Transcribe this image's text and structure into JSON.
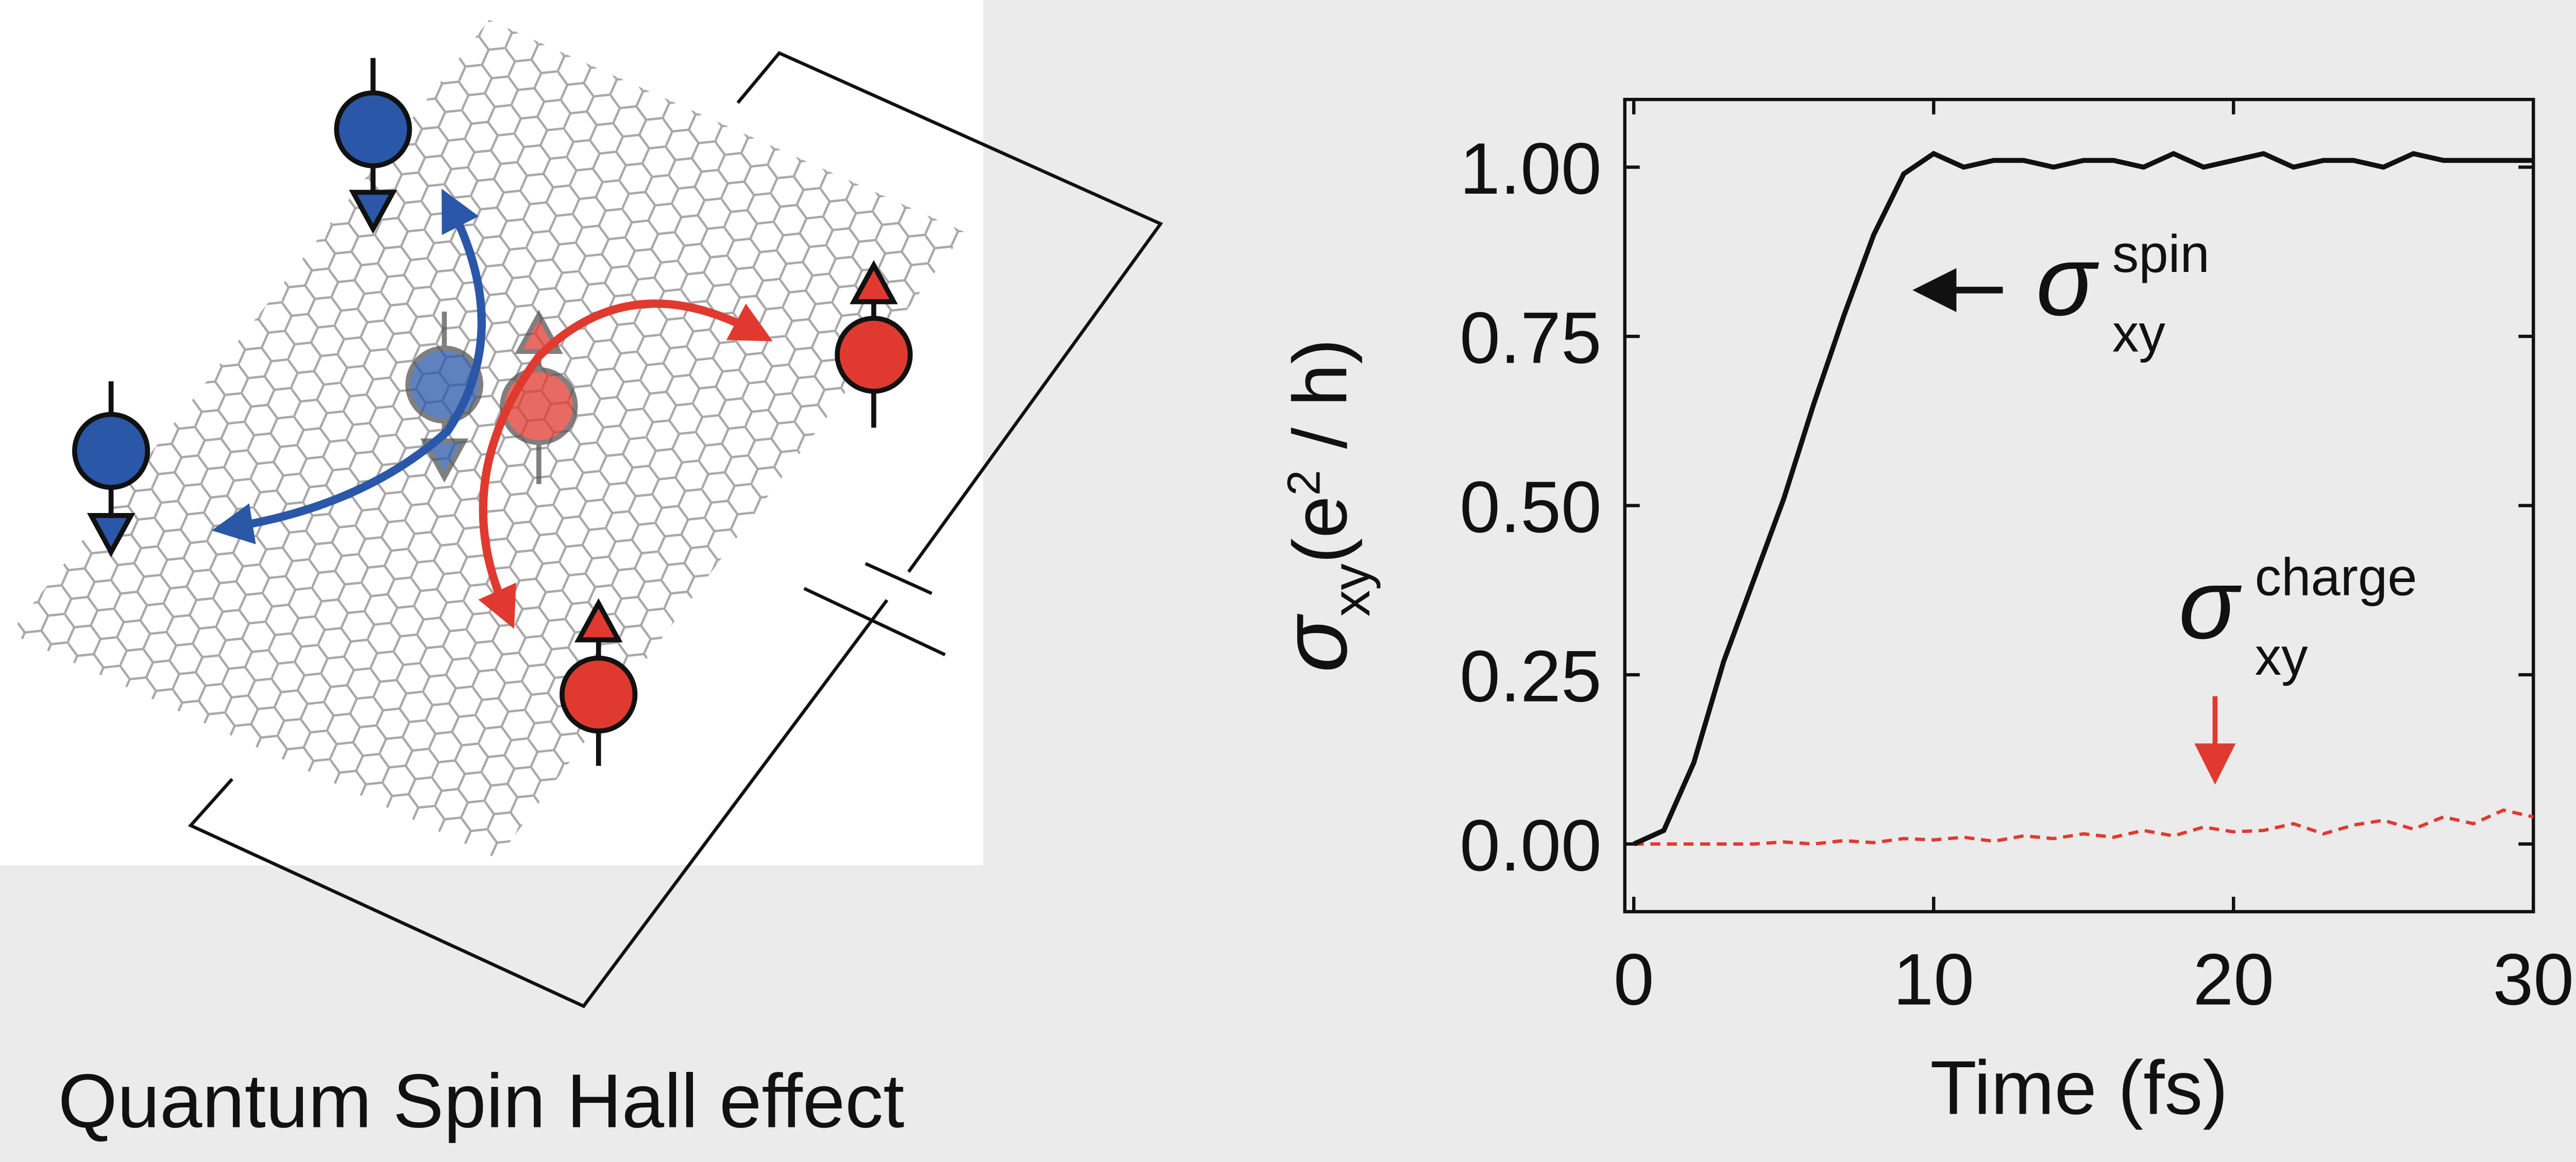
{
  "diagram": {
    "caption": "Quantum Spin Hall effect"
  },
  "chart_data": {
    "type": "line",
    "xlabel": "Time (fs)",
    "ylabel": {
      "symbol": "σ",
      "sub": "xy",
      "open": "(e",
      "sup": "2",
      "close": " / h)"
    },
    "annotations": [
      {
        "symbol": "σ",
        "sub": "xy",
        "sup": "spin"
      },
      {
        "symbol": "σ",
        "sub": "xy",
        "sup": "charge"
      }
    ],
    "x": [
      0,
      1,
      2,
      3,
      4,
      5,
      6,
      7,
      8,
      9,
      10,
      11,
      12,
      13,
      14,
      15,
      16,
      17,
      18,
      19,
      20,
      21,
      22,
      23,
      24,
      25,
      26,
      27,
      28,
      29,
      30
    ],
    "series": [
      {
        "color": "#111111",
        "dash": "solid",
        "values": [
          0,
          0.02,
          0.12,
          0.27,
          0.39,
          0.51,
          0.65,
          0.78,
          0.9,
          0.99,
          1.02,
          1.0,
          1.01,
          1.01,
          1.0,
          1.01,
          1.01,
          1.0,
          1.02,
          1.0,
          1.01,
          1.02,
          1.0,
          1.01,
          1.01,
          1.0,
          1.02,
          1.01,
          1.01,
          1.01,
          1.01
        ]
      },
      {
        "color": "#e03a30",
        "dash": "dashed",
        "values": [
          0,
          0,
          0,
          0,
          0,
          0.003,
          0,
          0.005,
          0.002,
          0.008,
          0.006,
          0.01,
          0.004,
          0.012,
          0.008,
          0.015,
          0.01,
          0.02,
          0.012,
          0.025,
          0.018,
          0.02,
          0.03,
          0.015,
          0.028,
          0.035,
          0.022,
          0.04,
          0.03,
          0.05,
          0.04
        ]
      }
    ],
    "xlim": [
      -0.3,
      30
    ],
    "ylim": [
      -0.1,
      1.1
    ],
    "xticks": [
      0,
      10,
      20,
      30
    ],
    "yticks": [
      {
        "value": 0,
        "label": "0.00"
      },
      {
        "value": 0.25,
        "label": "0.25"
      },
      {
        "value": 0.5,
        "label": "0.50"
      },
      {
        "value": 0.75,
        "label": "0.75"
      },
      {
        "value": 1,
        "label": "1.00"
      }
    ]
  }
}
